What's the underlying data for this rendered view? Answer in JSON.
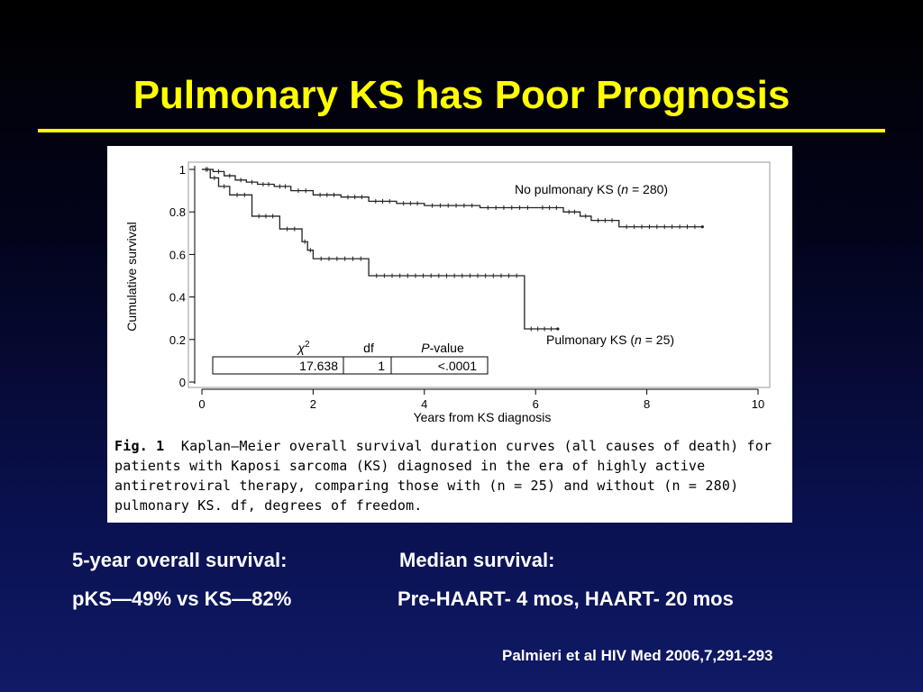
{
  "slide": {
    "title": "Pulmonary KS has Poor Prognosis",
    "accent_color": "#ffff00",
    "text_color": "#ffffff"
  },
  "summary": {
    "survival_label": "5-year overall survival:",
    "survival_value": "pKS—49%  vs KS—82%",
    "median_label": "Median survival:",
    "median_value": "Pre-HAART- 4 mos, HAART- 20 mos"
  },
  "citation": "Palmieri et al HIV Med 2006,7,291-293",
  "chart_data": {
    "type": "line",
    "subtype": "kaplan-meier-step",
    "xlabel": "Years from KS diagnosis",
    "ylabel": "Cumulative survival",
    "xlim": [
      0,
      10
    ],
    "ylim": [
      0,
      1
    ],
    "x_ticks": [
      0,
      2,
      4,
      6,
      8,
      10
    ],
    "y_ticks": [
      0,
      0.2,
      0.4,
      0.6,
      0.8,
      1
    ],
    "x_tick_labels": [
      "0",
      "2",
      "4",
      "6",
      "8",
      "10"
    ],
    "y_tick_labels": [
      "0",
      "0.2",
      "0.4",
      "0.6",
      "0.8",
      "1"
    ],
    "series": [
      {
        "name": "No pulmonary KS (n = 280)",
        "label_prefix": "No pulmonary KS (",
        "label_n": "n",
        "label_suffix": " = 280)",
        "x": [
          0,
          0.2,
          0.4,
          0.6,
          0.8,
          1.0,
          1.3,
          1.6,
          2.0,
          2.5,
          3.0,
          3.5,
          4.0,
          5.0,
          6.0,
          6.5,
          6.8,
          7.0,
          7.5,
          9.0
        ],
        "y": [
          1.0,
          0.99,
          0.97,
          0.95,
          0.94,
          0.93,
          0.92,
          0.9,
          0.88,
          0.87,
          0.85,
          0.84,
          0.83,
          0.82,
          0.82,
          0.8,
          0.78,
          0.76,
          0.73,
          0.73
        ]
      },
      {
        "name": "Pulmonary KS (n = 25)",
        "label_prefix": "Pulmonary KS (",
        "label_n": "n",
        "label_suffix": " = 25)",
        "x": [
          0,
          0.15,
          0.3,
          0.5,
          0.9,
          1.4,
          1.8,
          1.9,
          2.0,
          3.0,
          5.8,
          6.4
        ],
        "y": [
          1.0,
          0.96,
          0.92,
          0.88,
          0.78,
          0.72,
          0.66,
          0.62,
          0.58,
          0.5,
          0.25,
          0.25
        ]
      }
    ],
    "stats_table": {
      "headers": [
        "χ²",
        "df",
        "P-value"
      ],
      "chi_symbol": "χ",
      "chi_exp": "2",
      "p_letter": "P",
      "p_rest": "-value",
      "values": [
        "17.638",
        "1",
        "<.0001"
      ]
    },
    "caption": {
      "label": "Fig. 1",
      "text": "Kaplan–Meier overall survival duration curves (all causes of death) for patients with Kaposi sarcoma (KS) diagnosed in the era of highly active antiretroviral therapy, comparing those with (n = 25) and without (n = 280) pulmonary KS. df, degrees of freedom."
    }
  }
}
